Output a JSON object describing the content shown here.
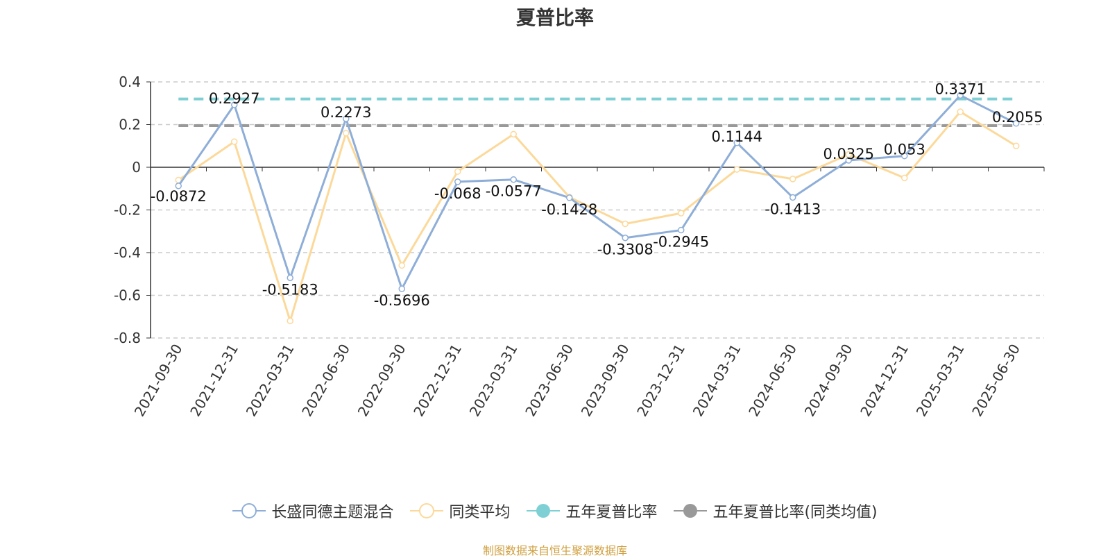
{
  "chart_data": {
    "type": "line",
    "title": "夏普比率",
    "xlabel": "",
    "ylabel": "",
    "ylim": [
      -0.8,
      0.4
    ],
    "yticks": [
      0.4,
      0.2,
      0,
      -0.2,
      -0.4,
      -0.6,
      -0.8
    ],
    "ytick_labels": [
      "0.4",
      "0.2",
      "0",
      "-0.2",
      "-0.4",
      "-0.6",
      "-0.8"
    ],
    "categories": [
      "2021-09-30",
      "2021-12-31",
      "2022-03-31",
      "2022-06-30",
      "2022-09-30",
      "2022-12-31",
      "2023-03-31",
      "2023-06-30",
      "2023-09-30",
      "2023-12-31",
      "2024-03-31",
      "2024-06-30",
      "2024-09-30",
      "2024-12-31",
      "2025-03-31",
      "2025-06-30"
    ],
    "grid": true,
    "legend_position": "bottom-center",
    "series": [
      {
        "name": "长盛同德主题混合",
        "color": "#8eaed8",
        "values": [
          -0.0872,
          0.2927,
          -0.5183,
          0.2273,
          -0.5696,
          -0.068,
          -0.0577,
          -0.1428,
          -0.3308,
          -0.2945,
          0.1144,
          -0.1413,
          0.0325,
          0.053,
          0.3371,
          0.2055
        ],
        "labels": [
          "-0.0872",
          "0.2927",
          "-0.5183",
          "0.2273",
          "-0.5696",
          "-0.068",
          "-0.0577",
          "-0.1428",
          "-0.3308",
          "-0.2945",
          "0.1144",
          "-0.1413",
          "0.0325",
          "0.053",
          "0.3371",
          "0.2055"
        ]
      },
      {
        "name": "同类平均",
        "color": "#fcd99a",
        "values": [
          -0.06,
          0.12,
          -0.72,
          0.16,
          -0.46,
          -0.02,
          0.155,
          -0.14,
          -0.265,
          -0.215,
          -0.01,
          -0.055,
          0.06,
          -0.05,
          0.26,
          0.1
        ]
      },
      {
        "name": "五年夏普比率",
        "color": "#7fd0d4",
        "value": 0.32
      },
      {
        "name": "五年夏普比率(同类均值)",
        "color": "#999999",
        "value": 0.195
      }
    ],
    "source": "制图数据来自恒生聚源数据库"
  }
}
